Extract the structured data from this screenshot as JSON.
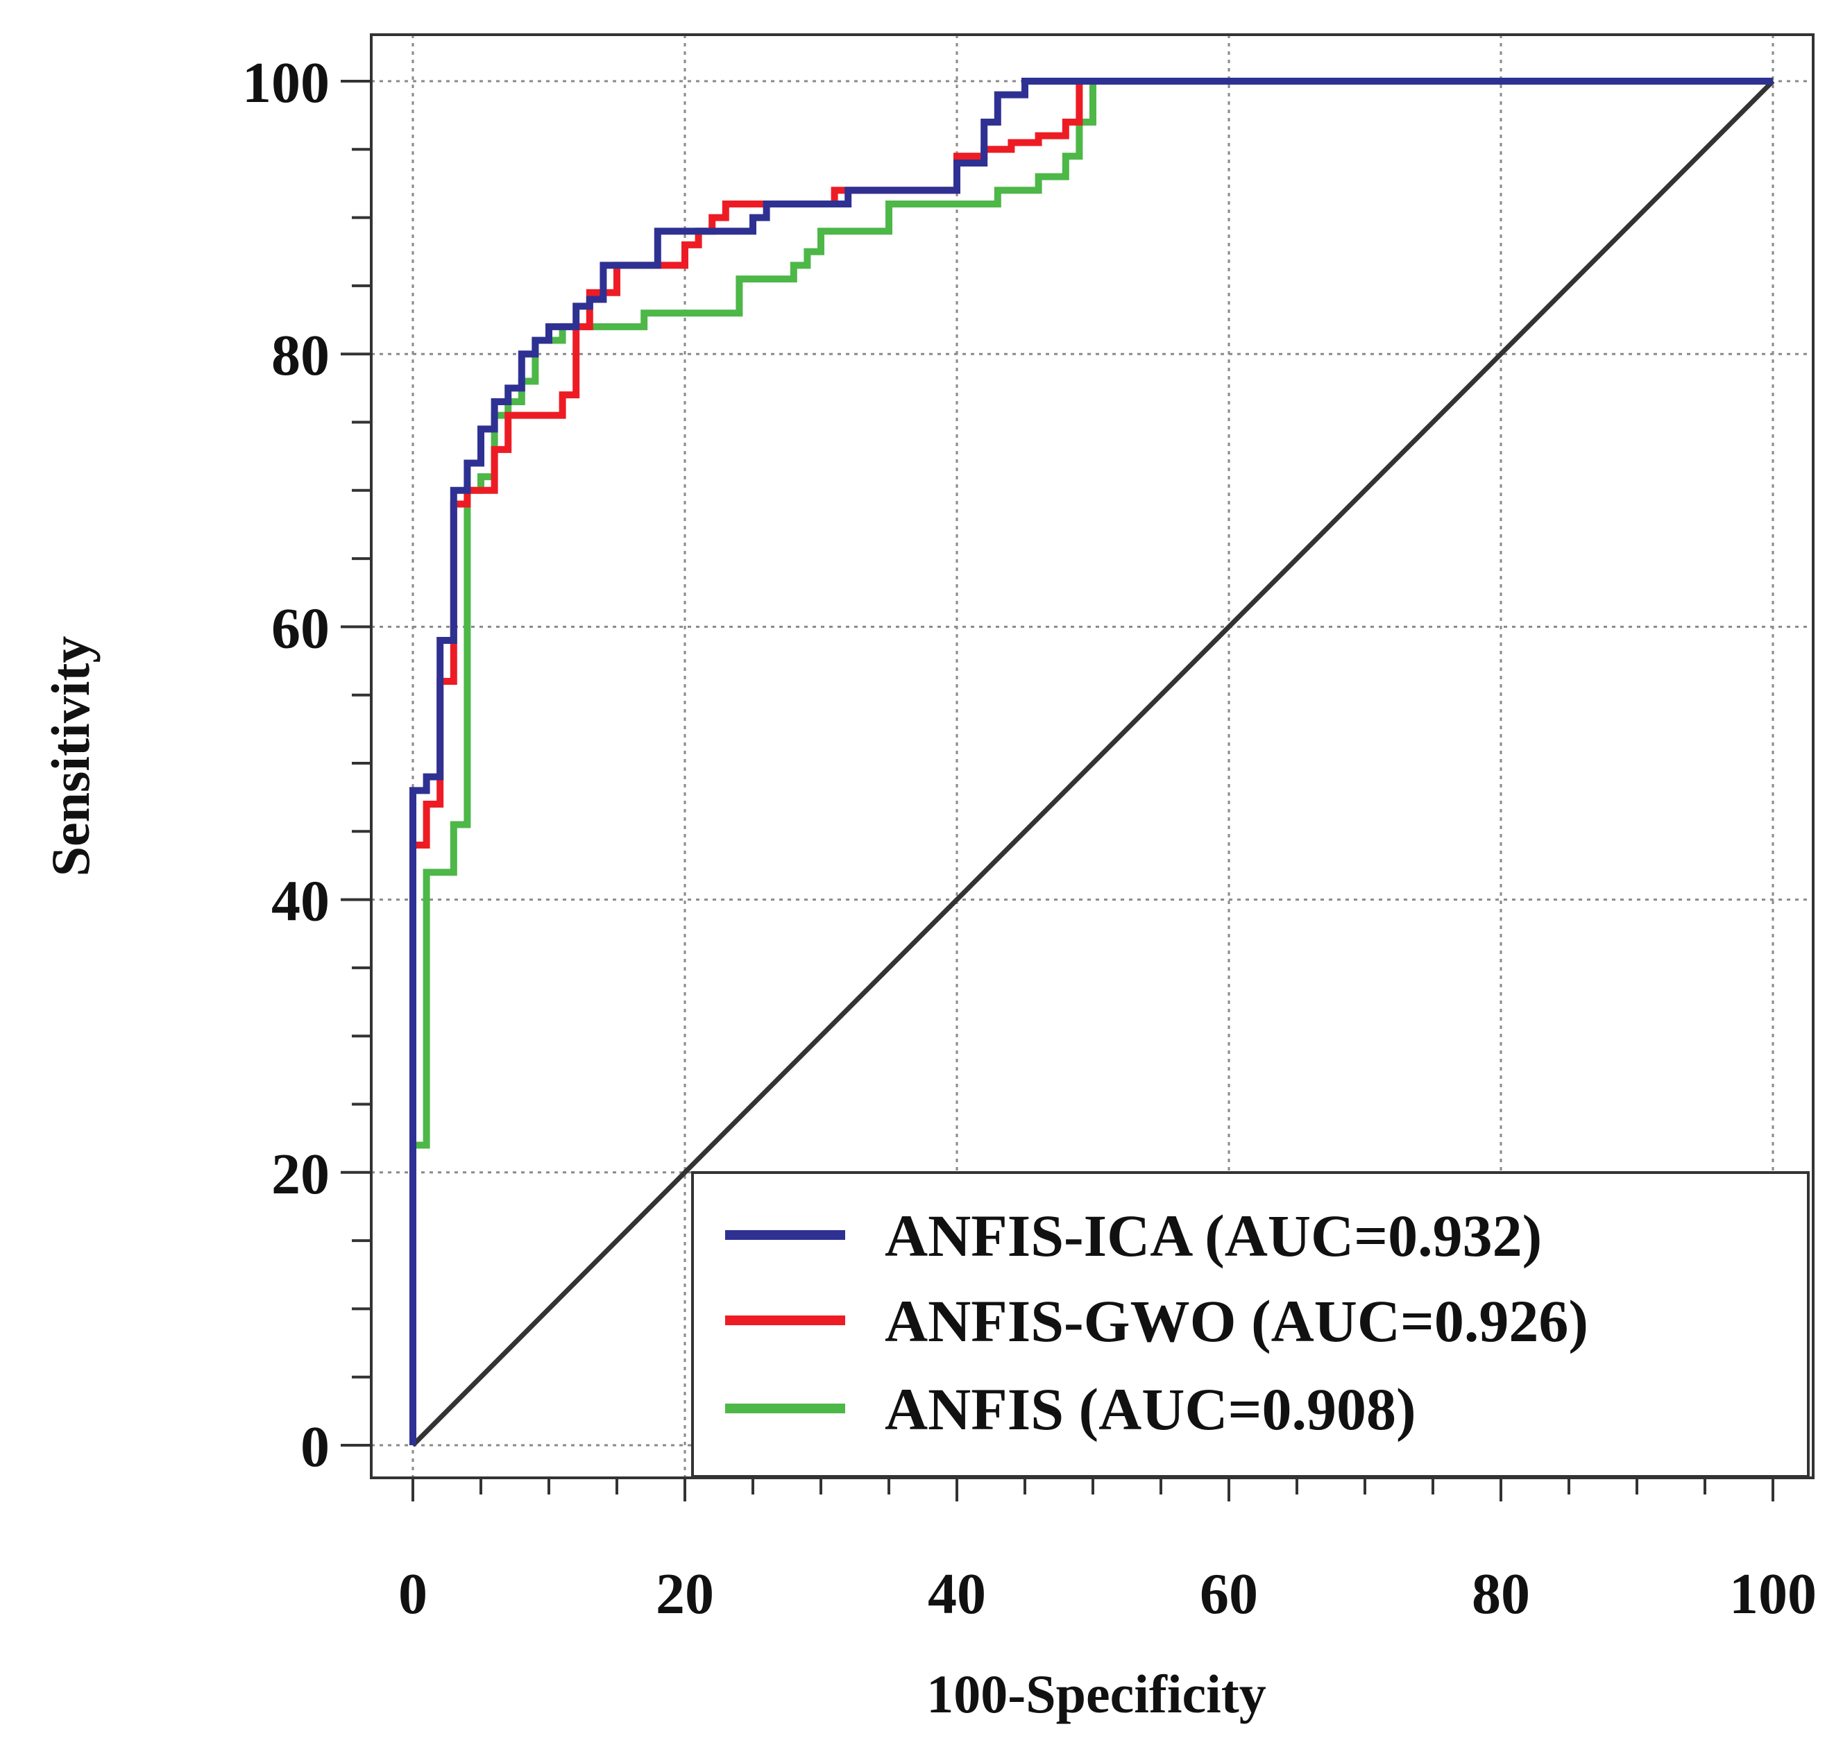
{
  "chart_data": {
    "type": "line",
    "title": "",
    "xlabel": "100-Specificity",
    "ylabel": "Sensitivity",
    "xlim": [
      0,
      100
    ],
    "ylim": [
      0,
      100
    ],
    "grid": true,
    "legend_position": "bottom-right",
    "x_ticks": [
      "0",
      "20",
      "40",
      "60",
      "80",
      "100"
    ],
    "y_ticks": [
      "0",
      "20",
      "40",
      "60",
      "80",
      "100"
    ],
    "reference_line": {
      "name": "chance",
      "color": "#333333",
      "points": [
        [
          0,
          0
        ],
        [
          100,
          100
        ]
      ]
    },
    "series": [
      {
        "name": "ANFIS-ICA",
        "legend": "ANFIS-ICA (AUC=0.932)",
        "auc": 0.932,
        "color": "#2e3192",
        "points": [
          [
            0,
            0
          ],
          [
            0,
            48
          ],
          [
            1,
            48
          ],
          [
            1,
            49
          ],
          [
            2,
            49
          ],
          [
            2,
            59
          ],
          [
            3,
            59
          ],
          [
            3,
            70
          ],
          [
            4,
            70
          ],
          [
            4,
            72
          ],
          [
            5,
            72
          ],
          [
            5,
            74.5
          ],
          [
            6,
            74.5
          ],
          [
            6,
            76.5
          ],
          [
            7,
            76.5
          ],
          [
            7,
            77.5
          ],
          [
            8,
            77.5
          ],
          [
            8,
            80
          ],
          [
            9,
            80
          ],
          [
            9,
            81
          ],
          [
            10,
            81
          ],
          [
            10,
            82
          ],
          [
            12,
            82
          ],
          [
            12,
            83.5
          ],
          [
            13,
            83.5
          ],
          [
            13,
            84
          ],
          [
            14,
            84
          ],
          [
            14,
            86.5
          ],
          [
            18,
            86.5
          ],
          [
            18,
            89
          ],
          [
            24,
            89
          ],
          [
            24,
            89
          ],
          [
            25,
            89
          ],
          [
            25,
            90
          ],
          [
            26,
            90
          ],
          [
            26,
            91
          ],
          [
            32,
            91
          ],
          [
            32,
            92
          ],
          [
            40,
            92
          ],
          [
            40,
            94
          ],
          [
            42,
            94
          ],
          [
            42,
            97
          ],
          [
            43,
            97
          ],
          [
            43,
            99
          ],
          [
            45,
            99
          ],
          [
            45,
            100
          ],
          [
            100,
            100
          ]
        ]
      },
      {
        "name": "ANFIS-GWO",
        "legend": "ANFIS-GWO (AUC=0.926)",
        "auc": 0.926,
        "color": "#ed1c24",
        "points": [
          [
            0,
            0
          ],
          [
            0,
            22
          ],
          [
            0,
            44
          ],
          [
            1,
            44
          ],
          [
            1,
            47
          ],
          [
            2,
            47
          ],
          [
            2,
            56
          ],
          [
            3,
            56
          ],
          [
            3,
            69
          ],
          [
            4,
            69
          ],
          [
            4,
            70
          ],
          [
            6,
            70
          ],
          [
            6,
            73
          ],
          [
            7,
            73
          ],
          [
            7,
            75.5
          ],
          [
            11,
            75.5
          ],
          [
            11,
            77
          ],
          [
            12,
            77
          ],
          [
            12,
            82
          ],
          [
            13,
            82
          ],
          [
            13,
            84.5
          ],
          [
            15,
            84.5
          ],
          [
            15,
            86.5
          ],
          [
            20,
            86.5
          ],
          [
            20,
            88
          ],
          [
            21,
            88
          ],
          [
            21,
            89
          ],
          [
            22,
            89
          ],
          [
            22,
            90
          ],
          [
            23,
            90
          ],
          [
            23,
            91
          ],
          [
            31,
            91
          ],
          [
            31,
            92
          ],
          [
            40,
            92
          ],
          [
            40,
            94.5
          ],
          [
            42,
            94.5
          ],
          [
            42,
            95
          ],
          [
            44,
            95
          ],
          [
            44,
            95.5
          ],
          [
            46,
            95.5
          ],
          [
            46,
            96
          ],
          [
            48,
            96
          ],
          [
            48,
            97
          ],
          [
            49,
            97
          ],
          [
            49,
            100
          ],
          [
            100,
            100
          ]
        ]
      },
      {
        "name": "ANFIS",
        "legend": "ANFIS (AUC=0.908)",
        "auc": 0.908,
        "color": "#4db748",
        "points": [
          [
            0,
            0
          ],
          [
            0,
            22
          ],
          [
            1,
            22
          ],
          [
            1,
            42
          ],
          [
            3,
            42
          ],
          [
            3,
            45.5
          ],
          [
            4,
            45.5
          ],
          [
            4,
            70
          ],
          [
            5,
            70
          ],
          [
            5,
            71
          ],
          [
            6,
            71
          ],
          [
            6,
            75.5
          ],
          [
            7,
            75.5
          ],
          [
            7,
            76.5
          ],
          [
            8,
            76.5
          ],
          [
            8,
            78
          ],
          [
            9,
            78
          ],
          [
            9,
            81
          ],
          [
            11,
            81
          ],
          [
            11,
            82
          ],
          [
            17,
            82
          ],
          [
            17,
            83
          ],
          [
            24,
            83
          ],
          [
            24,
            85.5
          ],
          [
            28,
            85.5
          ],
          [
            28,
            86.5
          ],
          [
            29,
            86.5
          ],
          [
            29,
            87.5
          ],
          [
            30,
            87.5
          ],
          [
            30,
            89
          ],
          [
            35,
            89
          ],
          [
            35,
            91
          ],
          [
            43,
            91
          ],
          [
            43,
            92
          ],
          [
            46,
            92
          ],
          [
            46,
            93
          ],
          [
            48,
            93
          ],
          [
            48,
            94.5
          ],
          [
            49,
            94.5
          ],
          [
            49,
            97
          ],
          [
            50,
            97
          ],
          [
            50,
            100
          ],
          [
            100,
            100
          ]
        ]
      }
    ]
  }
}
